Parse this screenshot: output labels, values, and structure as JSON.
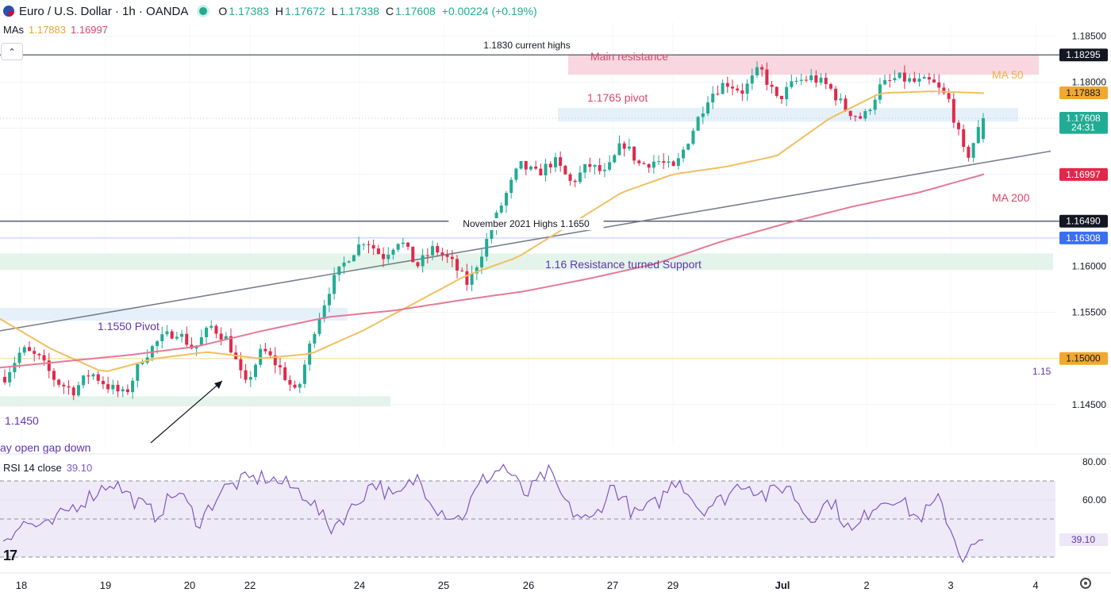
{
  "header": {
    "title": "Euro / U.S. Dollar · 1h · OANDA",
    "o_label": "O",
    "o": "1.17383",
    "h_label": "H",
    "h": "1.17672",
    "l_label": "L",
    "l": "1.17338",
    "c_label": "C",
    "c": "1.17608",
    "change": "+0.00224 (+0.19%)",
    "up_color": "#22ab94"
  },
  "mas": {
    "label": "MAs",
    "ma50": "1.17883",
    "ma200": "1.16997"
  },
  "rsi": {
    "label": "RSI 14 close",
    "value": "39.10"
  },
  "chart_data": {
    "type": "candlestick",
    "y_range": [
      1.1405,
      1.1865
    ],
    "y_ticks": [
      "1.18500",
      "1.18000",
      "1.17500",
      "1.17000",
      "1.16500",
      "1.16000",
      "1.15500",
      "1.15000",
      "1.14500"
    ],
    "x_ticks": [
      "18",
      "19",
      "20",
      "22",
      "24",
      "25",
      "26",
      "27",
      "29",
      "Jul",
      "2",
      "3",
      "4"
    ],
    "price_waypoints": [
      1.148,
      1.151,
      1.15,
      1.1475,
      1.1465,
      1.1485,
      1.147,
      1.146,
      1.15,
      1.152,
      1.153,
      1.151,
      1.1535,
      1.152,
      1.147,
      1.151,
      1.149,
      1.146,
      1.153,
      1.158,
      1.161,
      1.163,
      1.161,
      1.163,
      1.16,
      1.162,
      1.1605,
      1.158,
      1.1625,
      1.167,
      1.171,
      1.17,
      1.1715,
      1.169,
      1.171,
      1.17,
      1.1735,
      1.171,
      1.1715,
      1.1705,
      1.1745,
      1.1785,
      1.18,
      1.179,
      1.1815,
      1.178,
      1.18,
      1.1805,
      1.1795,
      1.177,
      1.176,
      1.1795,
      1.1805,
      1.18,
      1.18,
      1.178,
      1.1715,
      1.1761
    ],
    "ma50_waypoints": [
      1.1543,
      1.151,
      1.1485,
      1.15,
      1.1507,
      1.15,
      1.1505,
      1.153,
      1.156,
      1.159,
      1.161,
      1.1645,
      1.168,
      1.17,
      1.1708,
      1.172,
      1.176,
      1.1788,
      1.179,
      1.1788
    ],
    "ma200_waypoints": [
      1.149,
      1.1497,
      1.1504,
      1.1513,
      1.153,
      1.1545,
      1.1552,
      1.1563,
      1.1573,
      1.1587,
      1.1603,
      1.1627,
      1.1647,
      1.1665,
      1.168,
      1.17
    ],
    "rsi_waypoints": [
      40,
      48,
      45,
      55,
      62,
      70,
      60,
      52,
      65,
      48,
      65,
      70,
      72,
      68,
      62,
      45,
      55,
      70,
      60,
      72,
      55,
      50,
      70,
      78,
      62,
      75,
      55,
      48,
      68,
      52,
      58,
      72,
      55,
      60,
      70,
      62,
      68,
      50,
      60,
      42,
      58,
      62,
      50,
      60,
      30,
      39
    ],
    "rsi_ticks": [
      "80.00",
      "60.00"
    ],
    "rsi_bands": [
      70,
      50,
      30
    ],
    "trendline": {
      "from": 1.153,
      "to": 1.1725
    },
    "annotations": {
      "current_highs": "1.1830 current highs",
      "main_resistance": "Main resistance",
      "pivot_1765": "1.1765 pivot",
      "november_highs": "November 2021 Highs 1.1650",
      "resistance_support": "1.16 Resistance turned Support",
      "pivot_1550": "1.1550 Pivot",
      "level_1450": "1.1450",
      "gap_text": "ay open gap down",
      "line_115": "1.15",
      "ma50": "MA 50",
      "ma200": "MA 200"
    },
    "price_labels": [
      {
        "text": "1.18295",
        "price": 1.18295,
        "bg": "#131722",
        "fg": "#ffffff"
      },
      {
        "text": "1.17883",
        "price": 1.17883,
        "bg": "#f0a830",
        "fg": "#131722"
      },
      {
        "text": "1.17608",
        "price": 1.17608,
        "bg": "#22ab94",
        "fg": "#ffffff"
      },
      {
        "text": "24:31",
        "price": 1.17508,
        "bg": "#22ab94",
        "fg": "#ffffff"
      },
      {
        "text": "1.16997",
        "price": 1.16997,
        "bg": "#e0294a",
        "fg": "#ffffff"
      },
      {
        "text": "1.16490",
        "price": 1.1649,
        "bg": "#131722",
        "fg": "#ffffff"
      },
      {
        "text": "1.16308",
        "price": 1.16308,
        "bg": "#3b6ff0",
        "fg": "#ffffff"
      },
      {
        "text": "1.15000",
        "price": 1.15,
        "bg": "#f0a830",
        "fg": "#131722"
      },
      {
        "text": "39.10",
        "rsi": 39.1,
        "bg": "#ede7f6",
        "fg": "#5e35b1"
      }
    ],
    "colors": {
      "up": "#22ab94",
      "down": "#e0294a",
      "ma50": "#f0c060",
      "ma200": "#e47a95",
      "rsi": "#7e57c2"
    }
  }
}
